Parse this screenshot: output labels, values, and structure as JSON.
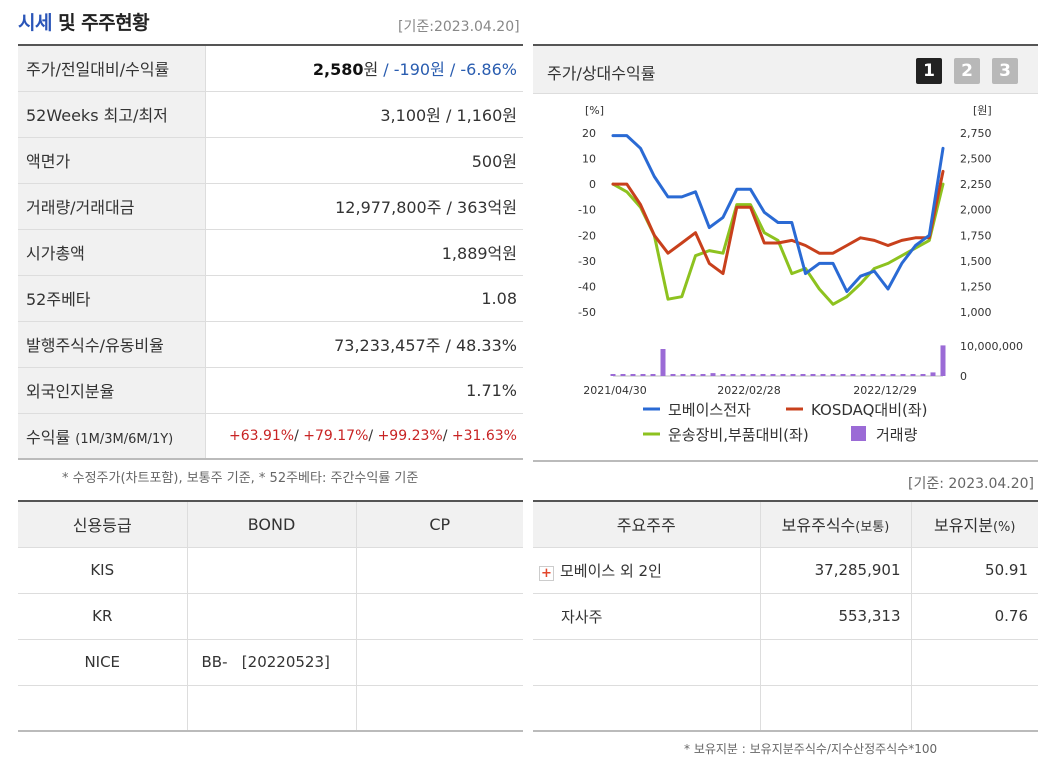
{
  "header": {
    "title_highlight": "시세",
    "title_rest": " 및 주주현황",
    "basis": "[기준:2023.04.20]"
  },
  "quote": {
    "rows": [
      {
        "label": "주가/전일대비/수익률"
      },
      {
        "label": "52Weeks 최고/최저",
        "value": "3,100원 / 1,160원"
      },
      {
        "label": "액면가",
        "value": "500원"
      },
      {
        "label": "거래량/거래대금",
        "value": "12,977,800주 / 363억원"
      },
      {
        "label": "시가총액",
        "value": "1,889억원"
      },
      {
        "label": "52주베타",
        "value": "1.08"
      },
      {
        "label": "발행주식수/유동비율",
        "value": "73,233,457주 / 48.33%"
      },
      {
        "label": "외국인지분율",
        "value": "1.71%"
      },
      {
        "label": "수익률",
        "label_sub": "(1M/3M/6M/1Y)"
      }
    ],
    "price": "2,580",
    "price_unit": "원",
    "sep": " / ",
    "change": "-190원",
    "change_pct": "-6.86%",
    "returns": [
      "+63.91%",
      "+79.17%",
      "+99.23%",
      "+31.63%"
    ],
    "note": "* 수정주가(차트포함), 보통주 기준, * 52주베타: 주간수익률 기준"
  },
  "chart_panel": {
    "title": "주가/상대수익률",
    "pages": [
      "1",
      "2",
      "3"
    ],
    "colors": {
      "active": "#222222",
      "inactive": "#b8b8b8"
    }
  },
  "chart_data": {
    "type": "line",
    "left_unit": "[%]",
    "right_unit": "[원]",
    "left_ticks": [
      "20",
      "10",
      "0",
      "-10",
      "-20",
      "-30",
      "-40",
      "-50"
    ],
    "right_ticks": [
      "2,750",
      "2,500",
      "2,250",
      "2,000",
      "1,750",
      "1,500",
      "1,250",
      "1,000"
    ],
    "volume_ticks": [
      "10,000,000",
      "0"
    ],
    "x_labels": [
      "2021/04/30",
      "2022/02/28",
      "2022/12/29"
    ],
    "ylim_left": [
      -50,
      20
    ],
    "ylim_right": [
      1000,
      2750
    ],
    "series": [
      {
        "name": "모베이스전자",
        "color": "#2a6ad4",
        "values": [
          19,
          19,
          14,
          3,
          -5,
          -5,
          -3,
          -17,
          -13,
          -2,
          -2,
          -11,
          -15,
          -15,
          -35,
          -31,
          -31,
          -42,
          -36,
          -34,
          -41,
          -31,
          -24,
          -20,
          14
        ]
      },
      {
        "name": "KOSDAQ대비(좌)",
        "color": "#c8401c",
        "values": [
          0,
          0,
          -8,
          -20,
          -27,
          -23,
          -19,
          -31,
          -35,
          -9,
          -9,
          -23,
          -23,
          -22,
          -24,
          -27,
          -27,
          -24,
          -21,
          -22,
          -24,
          -22,
          -21,
          -21,
          5
        ]
      },
      {
        "name": "운송장비,부품대비(좌)",
        "color": "#8dc21f",
        "values": [
          0,
          -3,
          -9,
          -20,
          -45,
          -44,
          -28,
          -26,
          -27,
          -8,
          -8,
          -19,
          -22,
          -35,
          -33,
          -41,
          -47,
          -44,
          -39,
          -33,
          -31,
          -28,
          -25,
          -22,
          0
        ]
      }
    ],
    "volume": {
      "name": "거래량",
      "color": "#9b6bd6",
      "values": [
        0.5,
        0.4,
        0.4,
        0.4,
        0.3,
        7.5,
        0.3,
        0.4,
        0.3,
        0.2,
        0.8,
        0.4,
        0.3,
        0.3,
        0.2,
        0.3,
        0.2,
        0.2,
        0.2,
        0.2,
        0.3,
        0.3,
        0.2,
        0.2,
        0.3,
        0.3,
        0.2,
        0.3,
        0.4,
        0.4,
        0.5,
        0.5,
        1.0,
        8.5
      ]
    }
  },
  "basis2": "[기준: 2023.04.20]",
  "credit": {
    "headers": [
      "신용등급",
      "BOND",
      "CP"
    ],
    "rows": [
      [
        "KIS",
        "",
        ""
      ],
      [
        "KR",
        "",
        ""
      ],
      [
        "NICE",
        "BB-   [20220523]",
        ""
      ],
      [
        "",
        "",
        ""
      ]
    ]
  },
  "holders": {
    "headers": [
      "주요주주",
      "보유주식수",
      "(보통)",
      "보유지분",
      "(%)"
    ],
    "rows": [
      {
        "name": "모베이스 외 2인",
        "shares": "37,285,901",
        "pct": "50.91",
        "expandable": true
      },
      {
        "name": "자사주",
        "shares": "553,313",
        "pct": "0.76",
        "expandable": false
      },
      {
        "name": "",
        "shares": "",
        "pct": ""
      },
      {
        "name": "",
        "shares": "",
        "pct": ""
      }
    ],
    "note": "* 보유지분 : 보유지분주식수/지수산정주식수*100"
  }
}
